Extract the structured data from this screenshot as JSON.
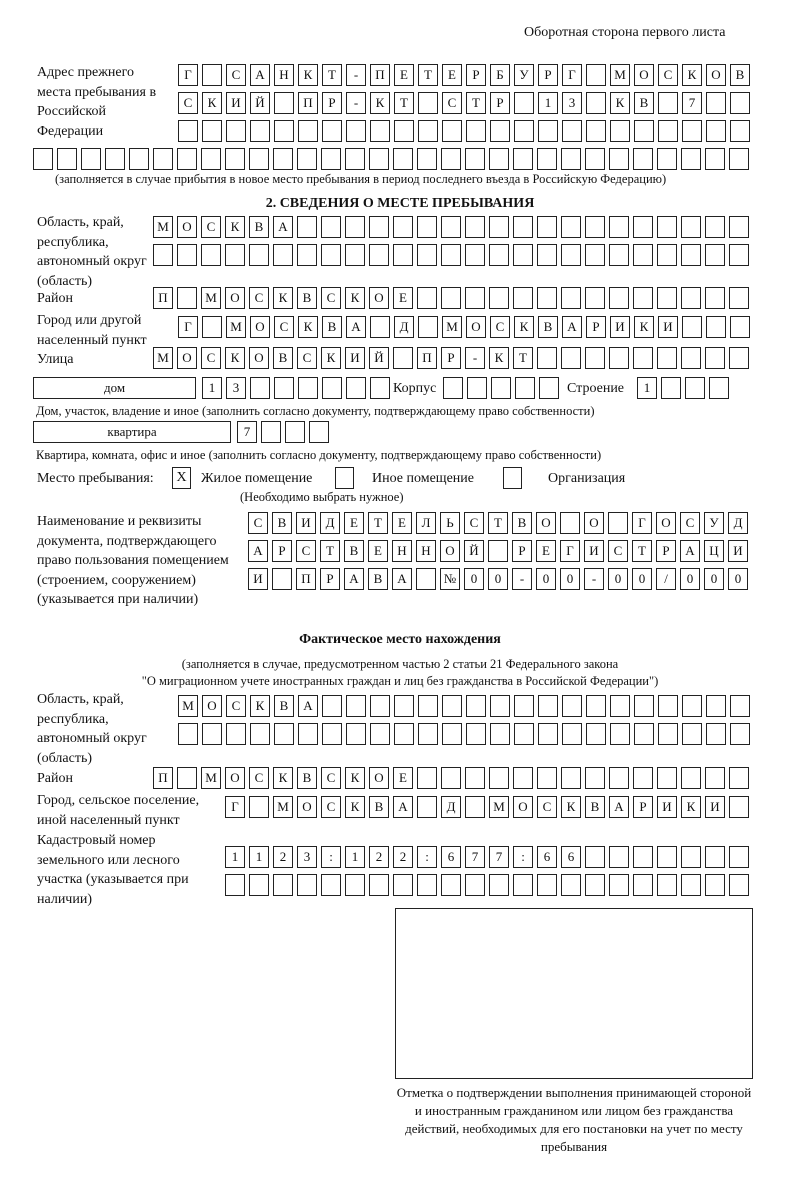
{
  "header": "Оборотная сторона первого листа",
  "previous_address": {
    "label": "Адрес прежнего места пребывания в Российской Федерации",
    "rows": [
      [
        "Г",
        "",
        "С",
        "А",
        "Н",
        "К",
        "Т",
        "-",
        "П",
        "Е",
        "Т",
        "Е",
        "Р",
        "Б",
        "У",
        "Р",
        "Г",
        "",
        "М",
        "О",
        "С",
        "К",
        "О",
        "В"
      ],
      [
        "С",
        "К",
        "И",
        "Й",
        "",
        "П",
        "Р",
        "-",
        "К",
        "Т",
        "",
        "С",
        "Т",
        "Р",
        "",
        "1",
        "3",
        "",
        "К",
        "В",
        "",
        "7",
        "",
        ""
      ],
      [
        "",
        "",
        "",
        "",
        "",
        "",
        "",
        "",
        "",
        "",
        "",
        "",
        "",
        "",
        "",
        "",
        "",
        "",
        "",
        "",
        "",
        "",
        "",
        ""
      ],
      [
        "",
        "",
        "",
        "",
        "",
        "",
        "",
        "",
        "",
        "",
        "",
        "",
        "",
        "",
        "",
        "",
        "",
        "",
        "",
        "",
        "",
        "",
        "",
        "",
        "",
        "",
        "",
        "",
        "",
        ""
      ]
    ],
    "note": "(заполняется в случае прибытия в новое место пребывания в период последнего въезда в Российскую Федерацию)"
  },
  "section2": {
    "title": "2. СВЕДЕНИЯ О МЕСТЕ ПРЕБЫВАНИЯ",
    "region_label": "Область, край, республика, автономный округ (область)",
    "region_rows": [
      [
        "М",
        "О",
        "С",
        "К",
        "В",
        "А",
        "",
        "",
        "",
        "",
        "",
        "",
        "",
        "",
        "",
        "",
        "",
        "",
        "",
        "",
        "",
        "",
        "",
        "",
        ""
      ],
      [
        "",
        "",
        "",
        "",
        "",
        "",
        "",
        "",
        "",
        "",
        "",
        "",
        "",
        "",
        "",
        "",
        "",
        "",
        "",
        "",
        "",
        "",
        "",
        "",
        ""
      ]
    ],
    "district_label": "Район",
    "district_row": [
      "П",
      "",
      "М",
      "О",
      "С",
      "К",
      "В",
      "С",
      "К",
      "О",
      "Е",
      "",
      "",
      "",
      "",
      "",
      "",
      "",
      "",
      "",
      "",
      "",
      "",
      "",
      ""
    ],
    "city_label": "Город или другой населенный пункт",
    "city_row": [
      "Г",
      "",
      "М",
      "О",
      "С",
      "К",
      "В",
      "А",
      "",
      "Д",
      "",
      "М",
      "О",
      "С",
      "К",
      "В",
      "А",
      "Р",
      "И",
      "К",
      "И",
      "",
      "",
      ""
    ],
    "street_label": "Улица",
    "street_row": [
      "М",
      "О",
      "С",
      "К",
      "О",
      "В",
      "С",
      "К",
      "И",
      "Й",
      "",
      "П",
      "Р",
      "-",
      "К",
      "Т",
      "",
      "",
      "",
      "",
      "",
      "",
      "",
      "",
      ""
    ],
    "house_type": "дом",
    "house_cells": [
      "1",
      "3",
      "",
      "",
      "",
      "",
      "",
      ""
    ],
    "korpus_label": "Корпус",
    "korpus_cells": [
      "",
      "",
      "",
      "",
      ""
    ],
    "building_label": "Строение",
    "building_cells": [
      "1",
      "",
      "",
      ""
    ],
    "house_note": "Дом, участок, владение и иное (заполнить согласно документу, подтверждающему право собственности)",
    "flat_type": "квартира",
    "flat_cells": [
      "7",
      "",
      "",
      ""
    ],
    "flat_note": "Квартира, комната, офис и иное (заполнить согласно документу, подтверждающему право собственности)",
    "place_label": "Место пребывания:",
    "place_options": [
      {
        "label": "Жилое помещение",
        "mark": "X"
      },
      {
        "label": "Иное помещение",
        "mark": ""
      },
      {
        "label": "Организация",
        "mark": ""
      }
    ],
    "place_hint": "(Необходимо выбрать нужное)",
    "doc_label": "Наименование и реквизиты документа, подтверждающего право пользования помещением (строением, сооружением) (указывается при наличии)",
    "doc_rows": [
      [
        "С",
        "В",
        "И",
        "Д",
        "Е",
        "Т",
        "Е",
        "Л",
        "Ь",
        "С",
        "Т",
        "В",
        "О",
        "",
        "О",
        "",
        "Г",
        "О",
        "С",
        "У",
        "Д"
      ],
      [
        "А",
        "Р",
        "С",
        "Т",
        "В",
        "Е",
        "Н",
        "Н",
        "О",
        "Й",
        "",
        "Р",
        "Е",
        "Г",
        "И",
        "С",
        "Т",
        "Р",
        "А",
        "Ц",
        "И"
      ],
      [
        "И",
        "",
        "П",
        "Р",
        "А",
        "В",
        "А",
        "",
        "№",
        "0",
        "0",
        "-",
        "0",
        "0",
        "-",
        "0",
        "0",
        "/",
        "0",
        "0",
        "0"
      ]
    ]
  },
  "actual": {
    "title": "Фактическое место нахождения",
    "note1": "(заполняется в случае, предусмотренном частью 2 статьи 21 Федерального закона",
    "note2": "\"О миграционном учете иностранных граждан и лиц без гражданства в Российской Федерации\")",
    "region_label": "Область, край, республика, автономный округ (область)",
    "region_rows": [
      [
        "М",
        "О",
        "С",
        "К",
        "В",
        "А",
        "",
        "",
        "",
        "",
        "",
        "",
        "",
        "",
        "",
        "",
        "",
        "",
        "",
        "",
        "",
        "",
        "",
        ""
      ],
      [
        "",
        "",
        "",
        "",
        "",
        "",
        "",
        "",
        "",
        "",
        "",
        "",
        "",
        "",
        "",
        "",
        "",
        "",
        "",
        "",
        "",
        "",
        "",
        ""
      ]
    ],
    "district_label": "Район",
    "district_row": [
      "П",
      "",
      "М",
      "О",
      "С",
      "К",
      "В",
      "С",
      "К",
      "О",
      "Е",
      "",
      "",
      "",
      "",
      "",
      "",
      "",
      "",
      "",
      "",
      "",
      "",
      "",
      ""
    ],
    "city_label": "Город, сельское поселение, иной населенный пункт",
    "city_row": [
      "Г",
      "",
      "М",
      "О",
      "С",
      "К",
      "В",
      "А",
      "",
      "Д",
      "",
      "М",
      "О",
      "С",
      "К",
      "В",
      "А",
      "Р",
      "И",
      "К",
      "И",
      ""
    ],
    "cadastral_label": "Кадастровый номер земельного или лесного участка (указывается при наличии)",
    "cadastral_rows": [
      [
        "1",
        "1",
        "2",
        "3",
        ":",
        "1",
        "2",
        "2",
        ":",
        "6",
        "7",
        "7",
        ":",
        "6",
        "6",
        "",
        "",
        "",
        "",
        "",
        "",
        ""
      ],
      [
        "",
        "",
        "",
        "",
        "",
        "",
        "",
        "",
        "",
        "",
        "",
        "",
        "",
        "",
        "",
        "",
        "",
        "",
        "",
        "",
        "",
        ""
      ]
    ]
  },
  "stamp_caption": "Отметка о подтверждении выполнения принимающей стороной и иностранным гражданином или лицом без гражданства действий, необходимых для его постановки на учет по месту пребывания"
}
